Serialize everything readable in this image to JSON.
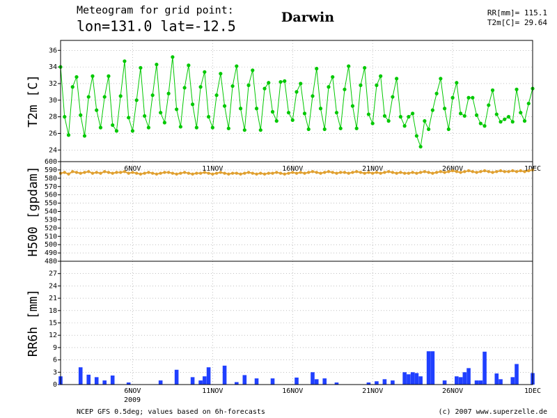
{
  "chart_data": {
    "title": "Meteogram for grid point:",
    "subtitle": "lon=131.0 lat=-12.5",
    "location": "Darwin",
    "annotations": [
      "RR[mm]= 115.1",
      "T2m[C]= 29.64"
    ],
    "year": "2009",
    "footer_left": "NCEP GFS 0.5deg; values based on 6h-forecasts",
    "footer_right": "(c) 2007 www.superzelle.de",
    "xlim": [
      1.5,
      31
    ],
    "xticks": [
      {
        "value": 6,
        "label": "6NOV"
      },
      {
        "value": 11,
        "label": "11NOV"
      },
      {
        "value": 16,
        "label": "16NOV"
      },
      {
        "value": 21,
        "label": "21NOV"
      },
      {
        "value": 26,
        "label": "26NOV"
      },
      {
        "value": 31,
        "label": "1DEC"
      }
    ],
    "x": [
      1.5,
      1.75,
      2,
      2.25,
      2.5,
      2.75,
      3,
      3.25,
      3.5,
      3.75,
      4,
      4.25,
      4.5,
      4.75,
      5,
      5.25,
      5.5,
      5.75,
      6,
      6.25,
      6.5,
      6.75,
      7,
      7.25,
      7.5,
      7.75,
      8,
      8.25,
      8.5,
      8.75,
      9,
      9.25,
      9.5,
      9.75,
      10,
      10.25,
      10.5,
      10.75,
      11,
      11.25,
      11.5,
      11.75,
      12,
      12.25,
      12.5,
      12.75,
      13,
      13.25,
      13.5,
      13.75,
      14,
      14.25,
      14.5,
      14.75,
      15,
      15.25,
      15.5,
      15.75,
      16,
      16.25,
      16.5,
      16.75,
      17,
      17.25,
      17.5,
      17.75,
      18,
      18.25,
      18.5,
      18.75,
      19,
      19.25,
      19.5,
      19.75,
      20,
      20.25,
      20.5,
      20.75,
      21,
      21.25,
      21.5,
      21.75,
      22,
      22.25,
      22.5,
      22.75,
      23,
      23.25,
      23.5,
      23.75,
      24,
      24.25,
      24.5,
      24.75,
      25,
      25.25,
      25.5,
      25.75,
      26,
      26.25,
      26.5,
      26.75,
      27,
      27.25,
      27.5,
      27.75,
      28,
      28.25,
      28.5,
      28.75,
      29,
      29.25,
      29.5,
      29.75,
      30,
      30.25,
      30.5,
      30.75,
      31
    ],
    "panels": [
      {
        "type": "line",
        "ylabel": "T2m [C]",
        "color": "#00c800",
        "ylim": [
          22.6,
          37.2
        ],
        "yticks": [
          24,
          26,
          28,
          30,
          32,
          34,
          36
        ],
        "values": [
          34.0,
          28.0,
          25.8,
          31.6,
          32.8,
          28.2,
          25.7,
          30.4,
          32.9,
          28.8,
          26.7,
          30.4,
          32.9,
          27.0,
          26.3,
          30.5,
          34.7,
          27.9,
          26.3,
          30.0,
          33.9,
          28.1,
          26.7,
          30.6,
          34.3,
          28.5,
          27.3,
          30.8,
          35.2,
          28.9,
          26.8,
          31.5,
          34.2,
          29.5,
          26.7,
          31.6,
          33.4,
          28.0,
          26.7,
          30.6,
          33.2,
          29.3,
          26.6,
          31.7,
          34.1,
          29.0,
          26.4,
          31.8,
          33.6,
          29.0,
          26.4,
          31.4,
          32.1,
          28.6,
          27.5,
          32.2,
          32.3,
          28.5,
          27.6,
          31.0,
          32.0,
          28.4,
          26.5,
          30.5,
          33.8,
          29.0,
          26.5,
          31.6,
          32.8,
          28.5,
          26.6,
          31.3,
          34.1,
          29.3,
          26.6,
          31.8,
          33.9,
          28.3,
          27.2,
          31.8,
          32.9,
          28.1,
          27.5,
          30.4,
          32.6,
          28.0,
          26.9,
          28.0,
          28.4,
          25.7,
          24.4,
          27.5,
          26.5,
          28.8,
          30.8,
          32.6,
          29.0,
          26.5,
          30.3,
          32.1,
          28.4,
          28.1,
          30.3,
          30.3,
          28.2,
          27.2,
          26.9,
          29.4,
          31.2,
          28.3,
          27.4,
          27.7,
          28.0,
          27.4,
          31.3,
          28.5,
          27.5,
          29.6,
          31.4
        ]
      },
      {
        "type": "dots",
        "ylabel": "H500 [gpdam]",
        "color": "#e0a030",
        "ylim": [
          480,
          600
        ],
        "yticks": [
          480,
          490,
          500,
          510,
          520,
          530,
          540,
          550,
          560,
          570,
          580,
          590,
          600
        ],
        "values": [
          586,
          587,
          585,
          588,
          587,
          586,
          587,
          588,
          586,
          587,
          586,
          588,
          587,
          586,
          587,
          587,
          588,
          586,
          587,
          586,
          585,
          586,
          587,
          586,
          585,
          586,
          587,
          587,
          586,
          585,
          586,
          587,
          586,
          585,
          586,
          586,
          587,
          586,
          585,
          586,
          587,
          586,
          585,
          586,
          586,
          585,
          586,
          587,
          586,
          585,
          586,
          585,
          586,
          586,
          587,
          586,
          585,
          586,
          587,
          586,
          587,
          586,
          587,
          588,
          587,
          586,
          587,
          588,
          587,
          586,
          587,
          587,
          586,
          587,
          588,
          587,
          586,
          587,
          586,
          587,
          586,
          587,
          588,
          587,
          586,
          587,
          586,
          586,
          587,
          586,
          587,
          588,
          587,
          586,
          587,
          588,
          587,
          588,
          589,
          588,
          587,
          588,
          589,
          588,
          587,
          588,
          589,
          588,
          587,
          588,
          589,
          588,
          588,
          589,
          588,
          589,
          588,
          589,
          590
        ]
      },
      {
        "type": "bar",
        "ylabel": "RR6h [mm]",
        "color": "#2040ff",
        "ylim": [
          0,
          30
        ],
        "yticks": [
          0,
          3,
          6,
          9,
          12,
          15,
          18,
          21,
          24,
          27
        ],
        "values": [
          2,
          0,
          0,
          0,
          0,
          4.2,
          0,
          2.4,
          0,
          1.8,
          0,
          1,
          0,
          2.2,
          0,
          0,
          0,
          0.5,
          0,
          0,
          0,
          0,
          0,
          0,
          0,
          1,
          0,
          0,
          0,
          3.6,
          0,
          0,
          0,
          1.8,
          0,
          1,
          2,
          4.2,
          0,
          0,
          0,
          4.6,
          0,
          0,
          0.6,
          0,
          2.3,
          0,
          0,
          1.5,
          0,
          0,
          0,
          1.5,
          0,
          0,
          0,
          0,
          0,
          1.7,
          0,
          0,
          0,
          3,
          1.3,
          0,
          1.5,
          0,
          0,
          0.5,
          0,
          0,
          0,
          0,
          0,
          0,
          0,
          0.5,
          0,
          0.8,
          0,
          1.3,
          0,
          1,
          0,
          0,
          3,
          2.5,
          3,
          2.8,
          2,
          0,
          8.1,
          8.1,
          0,
          0,
          1,
          0,
          0,
          2,
          1.8,
          3,
          4,
          0,
          1,
          1,
          8,
          0,
          0,
          2.7,
          1.3,
          0,
          0,
          1.8,
          5,
          0,
          0,
          0,
          2.8
        ]
      }
    ]
  }
}
